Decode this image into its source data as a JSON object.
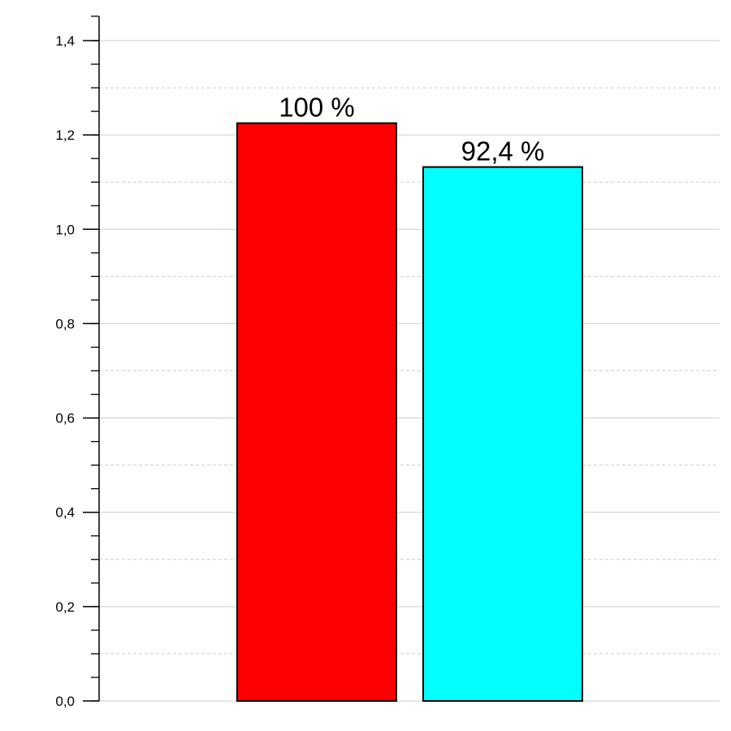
{
  "chart_data": {
    "type": "bar",
    "categories": [
      "",
      ""
    ],
    "values": [
      1.225,
      1.132
    ],
    "data_labels": [
      "100 %",
      "92,4 %"
    ],
    "colors": [
      "#ff0000",
      "#00ffff"
    ],
    "ylim": [
      0,
      1.4
    ],
    "yticks": [
      {
        "value": 0.0,
        "label": "0,0"
      },
      {
        "value": 0.2,
        "label": "0,2"
      },
      {
        "value": 0.4,
        "label": "0,4"
      },
      {
        "value": 0.6,
        "label": "0,6"
      },
      {
        "value": 0.8,
        "label": "0,8"
      },
      {
        "value": 1.0,
        "label": "1,0"
      },
      {
        "value": 1.2,
        "label": "1,2"
      },
      {
        "value": 1.4,
        "label": "1,4"
      }
    ],
    "major_grid_step": 0.2,
    "minor_grid_step": 0.1,
    "minor_tick_step": 0.05,
    "grid": true,
    "gridline_color": "#cccccc",
    "bar_border_color": "#000000",
    "title": "",
    "xlabel": "",
    "ylabel": ""
  }
}
